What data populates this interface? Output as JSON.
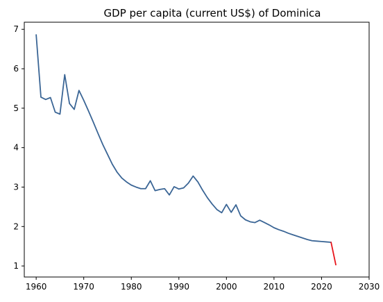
{
  "chart_data": {
    "type": "line",
    "title": "GDP per capita (current US$) of Dominica",
    "xlabel": "",
    "ylabel": "",
    "xlim": [
      1957.5,
      2030
    ],
    "ylim": [
      0.72,
      7.18
    ],
    "xticks": [
      1960,
      1970,
      1980,
      1990,
      2000,
      2010,
      2020,
      2030
    ],
    "yticks": [
      1,
      2,
      3,
      4,
      5,
      6,
      7
    ],
    "grid": false,
    "legend": "none",
    "series": [
      {
        "color": "#3a6595",
        "points": [
          [
            1960,
            6.86
          ],
          [
            1961,
            5.28
          ],
          [
            1962,
            5.22
          ],
          [
            1963,
            5.27
          ],
          [
            1964,
            4.9
          ],
          [
            1965,
            4.85
          ],
          [
            1966,
            5.85
          ],
          [
            1967,
            5.12
          ],
          [
            1968,
            4.97
          ],
          [
            1969,
            5.45
          ],
          [
            1970,
            5.2
          ],
          [
            1971,
            4.93
          ],
          [
            1972,
            4.65
          ],
          [
            1973,
            4.36
          ],
          [
            1974,
            4.08
          ],
          [
            1975,
            3.83
          ],
          [
            1976,
            3.58
          ],
          [
            1977,
            3.38
          ],
          [
            1978,
            3.23
          ],
          [
            1979,
            3.13
          ],
          [
            1980,
            3.05
          ],
          [
            1981,
            3.0
          ],
          [
            1982,
            2.96
          ],
          [
            1983,
            2.96
          ],
          [
            1984,
            3.16
          ],
          [
            1985,
            2.91
          ],
          [
            1986,
            2.94
          ],
          [
            1987,
            2.96
          ],
          [
            1988,
            2.8
          ],
          [
            1989,
            3.01
          ],
          [
            1990,
            2.95
          ],
          [
            1991,
            2.98
          ],
          [
            1992,
            3.1
          ],
          [
            1993,
            3.28
          ],
          [
            1994,
            3.13
          ],
          [
            1995,
            2.92
          ],
          [
            1996,
            2.73
          ],
          [
            1997,
            2.57
          ],
          [
            1998,
            2.43
          ],
          [
            1999,
            2.35
          ],
          [
            2000,
            2.56
          ],
          [
            2001,
            2.36
          ],
          [
            2002,
            2.55
          ],
          [
            2003,
            2.27
          ],
          [
            2004,
            2.17
          ],
          [
            2005,
            2.12
          ],
          [
            2006,
            2.1
          ],
          [
            2007,
            2.16
          ],
          [
            2008,
            2.1
          ],
          [
            2009,
            2.04
          ],
          [
            2010,
            1.97
          ],
          [
            2011,
            1.92
          ],
          [
            2012,
            1.88
          ],
          [
            2013,
            1.83
          ],
          [
            2014,
            1.79
          ],
          [
            2015,
            1.75
          ],
          [
            2016,
            1.71
          ],
          [
            2017,
            1.67
          ],
          [
            2018,
            1.64
          ],
          [
            2019,
            1.63
          ],
          [
            2020,
            1.62
          ],
          [
            2021,
            1.61
          ],
          [
            2022,
            1.6
          ]
        ]
      },
      {
        "color": "#e8141b",
        "points": [
          [
            2022,
            1.6
          ],
          [
            2023,
            1.03
          ]
        ]
      }
    ]
  }
}
